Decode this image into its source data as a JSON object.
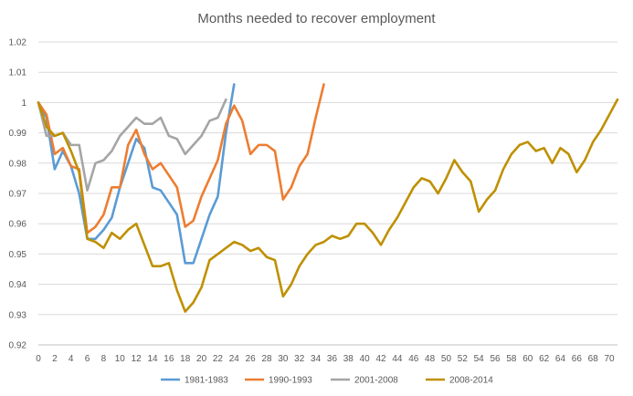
{
  "chart_data": {
    "type": "line",
    "title": "Months needed to recover employment",
    "xlabel": "",
    "ylabel": "",
    "xlim": [
      0,
      71
    ],
    "ylim": [
      0.92,
      1.02
    ],
    "y_ticks": [
      "0.92",
      "0.93",
      "0.94",
      "0.95",
      "0.96",
      "0.97",
      "0.98",
      "0.99",
      "1",
      "1.01",
      "1.02"
    ],
    "x_ticks": [
      0,
      2,
      4,
      6,
      8,
      10,
      12,
      14,
      16,
      18,
      20,
      22,
      24,
      26,
      28,
      30,
      32,
      34,
      36,
      38,
      40,
      42,
      44,
      46,
      48,
      50,
      52,
      54,
      56,
      58,
      60,
      62,
      64,
      66,
      68,
      70
    ],
    "grid": true,
    "legend_position": "bottom",
    "series": [
      {
        "name": "1981-1983",
        "color": "#5b9bd5",
        "values": [
          1.0,
          0.995,
          0.978,
          0.984,
          0.979,
          0.97,
          0.955,
          0.955,
          0.958,
          0.962,
          0.972,
          0.98,
          0.988,
          0.985,
          0.972,
          0.971,
          0.967,
          0.963,
          0.947,
          0.947,
          0.955,
          0.963,
          0.969,
          0.99,
          1.006
        ]
      },
      {
        "name": "1990-1993",
        "color": "#ed7d31",
        "values": [
          1.0,
          0.996,
          0.983,
          0.985,
          0.979,
          0.978,
          0.957,
          0.959,
          0.963,
          0.972,
          0.972,
          0.986,
          0.991,
          0.983,
          0.978,
          0.98,
          0.976,
          0.972,
          0.959,
          0.961,
          0.969,
          0.975,
          0.981,
          0.993,
          0.999,
          0.994,
          0.983,
          0.986,
          0.986,
          0.984,
          0.968,
          0.972,
          0.979,
          0.983,
          0.995,
          1.006
        ]
      },
      {
        "name": "2001-2008",
        "color": "#a5a5a5",
        "values": [
          1.0,
          0.989,
          0.989,
          0.99,
          0.986,
          0.986,
          0.971,
          0.98,
          0.981,
          0.984,
          0.989,
          0.992,
          0.995,
          0.993,
          0.993,
          0.995,
          0.989,
          0.988,
          0.983,
          0.986,
          0.989,
          0.994,
          0.995,
          1.001
        ]
      },
      {
        "name": "2008-2014",
        "color": "#bf9000",
        "values": [
          1.0,
          0.992,
          0.989,
          0.99,
          0.984,
          0.977,
          0.955,
          0.954,
          0.952,
          0.957,
          0.955,
          0.958,
          0.96,
          0.953,
          0.946,
          0.946,
          0.947,
          0.938,
          0.931,
          0.934,
          0.939,
          0.948,
          0.95,
          0.952,
          0.954,
          0.953,
          0.951,
          0.952,
          0.949,
          0.948,
          0.936,
          0.94,
          0.946,
          0.95,
          0.953,
          0.954,
          0.956,
          0.955,
          0.956,
          0.96,
          0.96,
          0.957,
          0.953,
          0.958,
          0.962,
          0.967,
          0.972,
          0.975,
          0.974,
          0.97,
          0.975,
          0.981,
          0.977,
          0.974,
          0.964,
          0.968,
          0.971,
          0.978,
          0.983,
          0.986,
          0.987,
          0.984,
          0.985,
          0.98,
          0.985,
          0.983,
          0.977,
          0.981,
          0.987,
          0.991,
          0.996,
          1.001
        ]
      }
    ]
  }
}
